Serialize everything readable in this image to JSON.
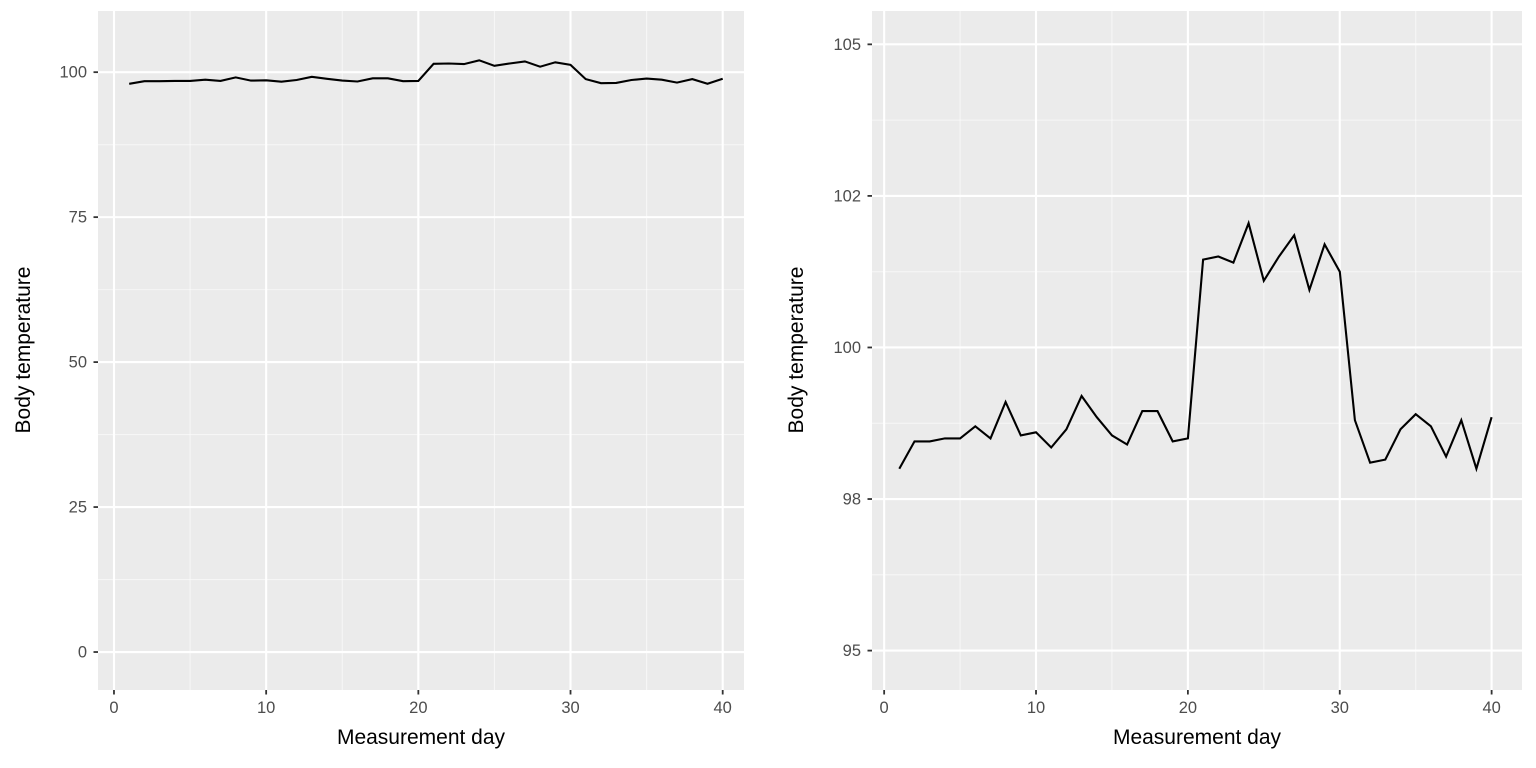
{
  "figure": {
    "background_color": "#ffffff",
    "panel_background_color": "#EBEBEB",
    "gridline_color": "#FFFFFF",
    "tick_mark_color": "#333333",
    "tick_label_color": "#4d4d4d",
    "line_color": "#000000"
  },
  "chart_data": [
    {
      "type": "line",
      "title": "",
      "xlabel": "Measurement day",
      "ylabel": "Body temperature",
      "x": [
        1,
        2,
        3,
        4,
        5,
        6,
        7,
        8,
        9,
        10,
        11,
        12,
        13,
        14,
        15,
        16,
        17,
        18,
        19,
        20,
        21,
        22,
        23,
        24,
        25,
        26,
        27,
        28,
        29,
        30,
        31,
        32,
        33,
        34,
        35,
        36,
        37,
        38,
        39,
        40
      ],
      "values": [
        98.0,
        98.45,
        98.45,
        98.5,
        98.5,
        98.7,
        98.5,
        99.1,
        98.55,
        98.6,
        98.35,
        98.65,
        99.2,
        98.85,
        98.55,
        98.4,
        98.95,
        98.95,
        98.45,
        98.5,
        101.45,
        101.5,
        101.4,
        102.05,
        101.1,
        101.5,
        101.85,
        100.95,
        101.7,
        101.25,
        98.8,
        98.1,
        98.15,
        98.65,
        98.9,
        98.7,
        98.2,
        98.8,
        98.0,
        98.85
      ],
      "x_ticks": [
        0,
        10,
        20,
        30,
        40
      ],
      "x_tick_labels": [
        "0",
        "10",
        "20",
        "30",
        "40"
      ],
      "y_ticks": [
        0,
        25,
        50,
        75,
        100
      ],
      "y_tick_labels": [
        "0",
        "25",
        "50",
        "75",
        "100"
      ],
      "xlim": [
        -1.05,
        41.4
      ],
      "ylim": [
        -6.55,
        110.55
      ],
      "grid": true,
      "legend": false
    },
    {
      "type": "line",
      "title": "",
      "xlabel": "Measurement day",
      "ylabel": "Body temperature",
      "x": [
        1,
        2,
        3,
        4,
        5,
        6,
        7,
        8,
        9,
        10,
        11,
        12,
        13,
        14,
        15,
        16,
        17,
        18,
        19,
        20,
        21,
        22,
        23,
        24,
        25,
        26,
        27,
        28,
        29,
        30,
        31,
        32,
        33,
        34,
        35,
        36,
        37,
        38,
        39,
        40
      ],
      "values": [
        98.0,
        98.45,
        98.45,
        98.5,
        98.5,
        98.7,
        98.5,
        99.1,
        98.55,
        98.6,
        98.35,
        98.65,
        99.2,
        98.85,
        98.55,
        98.4,
        98.95,
        98.95,
        98.45,
        98.5,
        101.45,
        101.5,
        101.4,
        102.05,
        101.1,
        101.5,
        101.85,
        100.95,
        101.7,
        101.25,
        98.8,
        98.1,
        98.15,
        98.65,
        98.9,
        98.7,
        98.2,
        98.8,
        98.0,
        98.85
      ],
      "x_ticks": [
        0,
        10,
        20,
        30,
        40
      ],
      "x_tick_labels": [
        "0",
        "10",
        "20",
        "30",
        "40"
      ],
      "y_ticks": [
        95,
        97.5,
        100,
        102.5,
        105
      ],
      "y_tick_labels": [
        "95",
        "98",
        "100",
        "102",
        "105"
      ],
      "xlim": [
        -0.8,
        42.0
      ],
      "ylim": [
        94.35,
        105.55
      ],
      "grid": true,
      "legend": false
    }
  ]
}
